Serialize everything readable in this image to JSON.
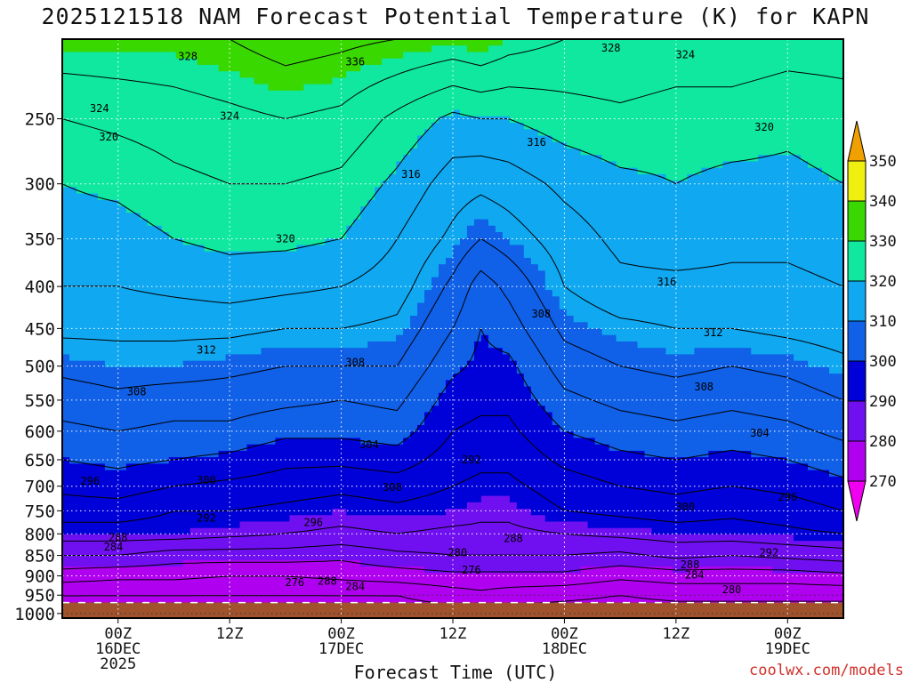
{
  "chart_data": {
    "type": "heatmap",
    "title": "2025121518 NAM Forecast Potential Temperature (K) for KAPN",
    "xlabel": "Forecast Time (UTC)",
    "ylabel": "",
    "y_scale": "log",
    "y_inverted": true,
    "ylim": [
      1013,
      200
    ],
    "y_ticks": [
      250,
      300,
      350,
      400,
      450,
      500,
      550,
      600,
      650,
      700,
      750,
      800,
      850,
      900,
      950,
      1000
    ],
    "x_ticks": [
      {
        "hour": 6,
        "lines": [
          "00Z",
          "16DEC",
          "2025"
        ]
      },
      {
        "hour": 18,
        "lines": [
          "12Z"
        ]
      },
      {
        "hour": 30,
        "lines": [
          "00Z",
          "17DEC"
        ]
      },
      {
        "hour": 42,
        "lines": [
          "12Z"
        ]
      },
      {
        "hour": 54,
        "lines": [
          "00Z",
          "18DEC"
        ]
      },
      {
        "hour": 66,
        "lines": [
          "12Z"
        ]
      },
      {
        "hour": 78,
        "lines": [
          "00Z",
          "19DEC"
        ]
      }
    ],
    "xlim": [
      0,
      84
    ],
    "grid": true,
    "colorbar": {
      "levels": [
        270,
        280,
        290,
        300,
        310,
        320,
        330,
        340,
        350
      ],
      "colors": [
        "#f000f0",
        "#b000f0",
        "#7010f0",
        "#0000d8",
        "#1060e8",
        "#10a8f0",
        "#10e8a0",
        "#38d800",
        "#f0f010",
        "#f0a000"
      ],
      "extend": "both"
    },
    "profile_pressures": [
      1000,
      950,
      900,
      850,
      800,
      750,
      700,
      650,
      600,
      550,
      500,
      450,
      400,
      350,
      300,
      250,
      200
    ],
    "series": [
      {
        "hour": 0,
        "theta": [
          270,
          272,
          278,
          284,
          290,
          294,
          297,
          300,
          303,
          306,
          309,
          313,
          316,
          318,
          320,
          324,
          331
        ]
      },
      {
        "hour": 6,
        "theta": [
          270,
          272,
          277,
          284,
          290,
          294,
          298,
          301,
          304,
          307,
          310,
          313,
          316,
          318,
          321,
          325,
          331
        ]
      },
      {
        "hour": 12,
        "theta": [
          270,
          272,
          277,
          282,
          290,
          292,
          296,
          300,
          303,
          306,
          310,
          313,
          317,
          320,
          323,
          326,
          331
        ]
      },
      {
        "hour": 18,
        "theta": [
          270,
          272,
          276,
          282,
          289,
          292,
          295,
          299,
          303,
          306,
          309,
          313,
          318,
          321,
          324,
          327,
          332
        ]
      },
      {
        "hour": 24,
        "theta": [
          270,
          272,
          276,
          282,
          288,
          291,
          294,
          297,
          301,
          305,
          308,
          312,
          317,
          321,
          324,
          328,
          334
        ]
      },
      {
        "hour": 30,
        "theta": [
          270,
          272,
          277,
          281,
          287,
          290,
          293,
          297,
          301,
          304,
          308,
          312,
          316,
          320,
          323,
          327,
          333
        ]
      },
      {
        "hour": 36,
        "theta": [
          270,
          272,
          278,
          283,
          288,
          291,
          294,
          298,
          302,
          305,
          308,
          311,
          314,
          316,
          319,
          323,
          332
        ]
      },
      {
        "hour": 42,
        "theta": [
          270,
          274,
          279,
          284,
          287,
          290,
          292,
          294,
          296,
          298,
          301,
          304,
          307,
          311,
          314,
          319,
          331
        ]
      },
      {
        "hour": 45,
        "theta": [
          270,
          275,
          279,
          284,
          287,
          289,
          291,
          293,
          295,
          297,
          299,
          300,
          302,
          308,
          313,
          320,
          332
        ]
      },
      {
        "hour": 48,
        "theta": [
          270,
          274,
          279,
          284,
          287,
          289,
          291,
          293,
          295,
          297,
          299,
          302,
          305,
          310,
          314,
          320,
          330
        ]
      },
      {
        "hour": 54,
        "theta": [
          270,
          273,
          279,
          284,
          288,
          292,
          294,
          297,
          300,
          303,
          306,
          309,
          312,
          314,
          317,
          322,
          328
        ]
      },
      {
        "hour": 60,
        "theta": [
          270,
          272,
          277,
          283,
          289,
          293,
          296,
          299,
          302,
          305,
          308,
          311,
          315,
          317,
          319,
          323,
          328
        ]
      },
      {
        "hour": 66,
        "theta": [
          270,
          273,
          278,
          285,
          290,
          294,
          297,
          300,
          303,
          306,
          309,
          312,
          315,
          318,
          320,
          322,
          327
        ]
      },
      {
        "hour": 72,
        "theta": [
          270,
          273,
          278,
          284,
          290,
          293,
          296,
          299,
          302,
          305,
          308,
          312,
          315,
          317,
          319,
          322,
          327
        ]
      },
      {
        "hour": 78,
        "theta": [
          270,
          273,
          278,
          285,
          291,
          294,
          297,
          300,
          303,
          306,
          309,
          313,
          315,
          317,
          319,
          321,
          326
        ]
      },
      {
        "hour": 84,
        "theta": [
          270,
          273,
          279,
          286,
          292,
          296,
          299,
          302,
          305,
          308,
          311,
          314,
          316,
          318,
          320,
          322,
          326
        ]
      }
    ],
    "contour_labels": [
      {
        "text": "328",
        "hour": 13.5,
        "p": 210
      },
      {
        "text": "336",
        "hour": 31.5,
        "p": 213
      },
      {
        "text": "328",
        "hour": 59,
        "p": 205
      },
      {
        "text": "324",
        "hour": 67,
        "p": 209
      },
      {
        "text": "324",
        "hour": 4,
        "p": 243
      },
      {
        "text": "324",
        "hour": 18,
        "p": 248
      },
      {
        "text": "320",
        "hour": 5,
        "p": 263
      },
      {
        "text": "316",
        "hour": 51,
        "p": 267
      },
      {
        "text": "320",
        "hour": 75.5,
        "p": 256
      },
      {
        "text": "316",
        "hour": 37.5,
        "p": 292
      },
      {
        "text": "320",
        "hour": 24,
        "p": 350
      },
      {
        "text": "316",
        "hour": 65,
        "p": 395
      },
      {
        "text": "308",
        "hour": 51.5,
        "p": 432
      },
      {
        "text": "312",
        "hour": 70,
        "p": 455
      },
      {
        "text": "312",
        "hour": 15.5,
        "p": 478
      },
      {
        "text": "308",
        "hour": 31.5,
        "p": 495
      },
      {
        "text": "308",
        "hour": 8,
        "p": 537
      },
      {
        "text": "308",
        "hour": 69,
        "p": 530
      },
      {
        "text": "304",
        "hour": 33,
        "p": 623
      },
      {
        "text": "304",
        "hour": 75,
        "p": 603
      },
      {
        "text": "292",
        "hour": 44,
        "p": 650
      },
      {
        "text": "296",
        "hour": 3,
        "p": 690
      },
      {
        "text": "300",
        "hour": 15.5,
        "p": 688
      },
      {
        "text": "300",
        "hour": 35.5,
        "p": 702
      },
      {
        "text": "300",
        "hour": 67,
        "p": 742
      },
      {
        "text": "296",
        "hour": 78,
        "p": 722
      },
      {
        "text": "292",
        "hour": 15.5,
        "p": 765
      },
      {
        "text": "296",
        "hour": 27,
        "p": 775
      },
      {
        "text": "288",
        "hour": 6,
        "p": 808
      },
      {
        "text": "284",
        "hour": 5.5,
        "p": 830
      },
      {
        "text": "288",
        "hour": 48.5,
        "p": 810
      },
      {
        "text": "280",
        "hour": 42.5,
        "p": 843
      },
      {
        "text": "292",
        "hour": 76,
        "p": 843
      },
      {
        "text": "288",
        "hour": 67.5,
        "p": 872
      },
      {
        "text": "276",
        "hour": 44,
        "p": 885
      },
      {
        "text": "284",
        "hour": 68,
        "p": 898
      },
      {
        "text": "276",
        "hour": 25,
        "p": 917
      },
      {
        "text": "288",
        "hour": 28.5,
        "p": 913
      },
      {
        "text": "284",
        "hour": 31.5,
        "p": 927
      },
      {
        "text": "280",
        "hour": 72,
        "p": 935
      }
    ]
  },
  "credit": "coolwx.com/models"
}
